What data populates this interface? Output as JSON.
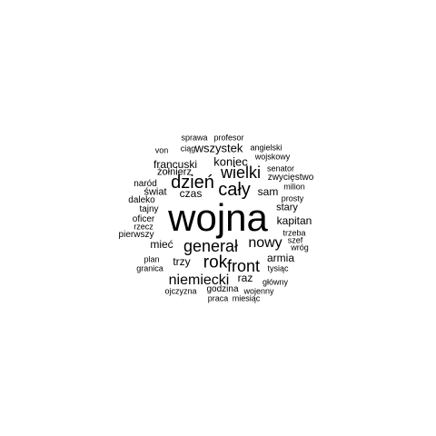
{
  "words": [
    "wojna",
    "generał",
    "dzień",
    "cały",
    "wielki",
    "rok",
    "front",
    "niemiecki",
    "nowy",
    "koniec",
    "wszystek",
    "francuski",
    "czas",
    "sam",
    "kapitan",
    "armia",
    "raz",
    "trzy",
    "mieć",
    "stary",
    "żołnierz",
    "świat",
    "zwycięstwo",
    "naród",
    "senator",
    "wojskowy",
    "angielski",
    "ciąg",
    "von",
    "sprawa",
    "profesor",
    "milion",
    "prosty",
    "daleko",
    "tajny",
    "oficer",
    "rzecz",
    "pierwszy",
    "trzeba",
    "szef",
    "wróg",
    "plan",
    "granica",
    "tysiąc",
    "godzina",
    "ojczyzna",
    "wojenny",
    "główny",
    "praca",
    "miesiąc"
  ]
}
